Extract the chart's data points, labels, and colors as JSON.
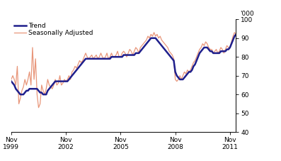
{
  "ylabel_right": "'000",
  "ylim": [
    40,
    100
  ],
  "yticks": [
    40,
    50,
    60,
    70,
    80,
    90,
    100
  ],
  "xtick_labels": [
    "Nov\n1999",
    "Nov\n2002",
    "Nov\n2005",
    "Nov\n2008",
    "Nov\n2011"
  ],
  "xtick_positions": [
    0,
    36,
    72,
    108,
    144
  ],
  "trend_color": "#1f1f8c",
  "seasonal_color": "#e8967a",
  "legend_labels": [
    "Trend",
    "Seasonally Adjusted"
  ],
  "trend_linewidth": 1.8,
  "seasonal_linewidth": 0.9,
  "background_color": "#ffffff",
  "trend_data": [
    67,
    66,
    65,
    63,
    62,
    61,
    60,
    60,
    60,
    61,
    62,
    62,
    63,
    63,
    63,
    63,
    63,
    63,
    62,
    61,
    61,
    60,
    60,
    60,
    62,
    63,
    64,
    65,
    66,
    67,
    67,
    67,
    67,
    67,
    67,
    67,
    67,
    67,
    68,
    69,
    70,
    71,
    72,
    73,
    74,
    75,
    76,
    77,
    78,
    79,
    79,
    79,
    79,
    79,
    79,
    79,
    79,
    79,
    79,
    79,
    79,
    79,
    79,
    79,
    79,
    79,
    80,
    80,
    80,
    80,
    80,
    80,
    80,
    80,
    81,
    81,
    81,
    81,
    81,
    81,
    81,
    81,
    82,
    82,
    82,
    83,
    84,
    85,
    86,
    87,
    88,
    89,
    90,
    90,
    90,
    90,
    89,
    88,
    87,
    86,
    85,
    84,
    83,
    82,
    81,
    80,
    79,
    78,
    72,
    70,
    69,
    68,
    68,
    68,
    69,
    70,
    71,
    72,
    72,
    73,
    75,
    76,
    78,
    80,
    82,
    83,
    84,
    85,
    85,
    85,
    84,
    83,
    83,
    82,
    82,
    82,
    82,
    82,
    83,
    83,
    83,
    83,
    84,
    84,
    85,
    87,
    89,
    91,
    92
  ],
  "seasonal_data": [
    68,
    70,
    68,
    65,
    75,
    55,
    58,
    62,
    64,
    68,
    65,
    68,
    72,
    65,
    85,
    68,
    79,
    60,
    53,
    55,
    65,
    62,
    60,
    63,
    68,
    65,
    64,
    63,
    65,
    68,
    65,
    66,
    70,
    65,
    66,
    68,
    67,
    68,
    70,
    68,
    72,
    73,
    75,
    74,
    76,
    78,
    77,
    78,
    80,
    82,
    80,
    79,
    80,
    81,
    79,
    80,
    81,
    79,
    80,
    82,
    80,
    79,
    80,
    82,
    79,
    80,
    82,
    80,
    80,
    81,
    83,
    80,
    80,
    82,
    83,
    82,
    80,
    82,
    84,
    83,
    81,
    83,
    85,
    84,
    82,
    85,
    86,
    87,
    88,
    89,
    91,
    90,
    92,
    91,
    93,
    91,
    92,
    90,
    91,
    89,
    88,
    87,
    86,
    85,
    83,
    82,
    81,
    79,
    68,
    67,
    68,
    70,
    68,
    70,
    72,
    71,
    73,
    72,
    73,
    75,
    77,
    78,
    80,
    82,
    84,
    85,
    87,
    86,
    88,
    87,
    85,
    84,
    84,
    82,
    83,
    84,
    82,
    83,
    85,
    84,
    82,
    84,
    86,
    85,
    85,
    88,
    91,
    93,
    92
  ]
}
